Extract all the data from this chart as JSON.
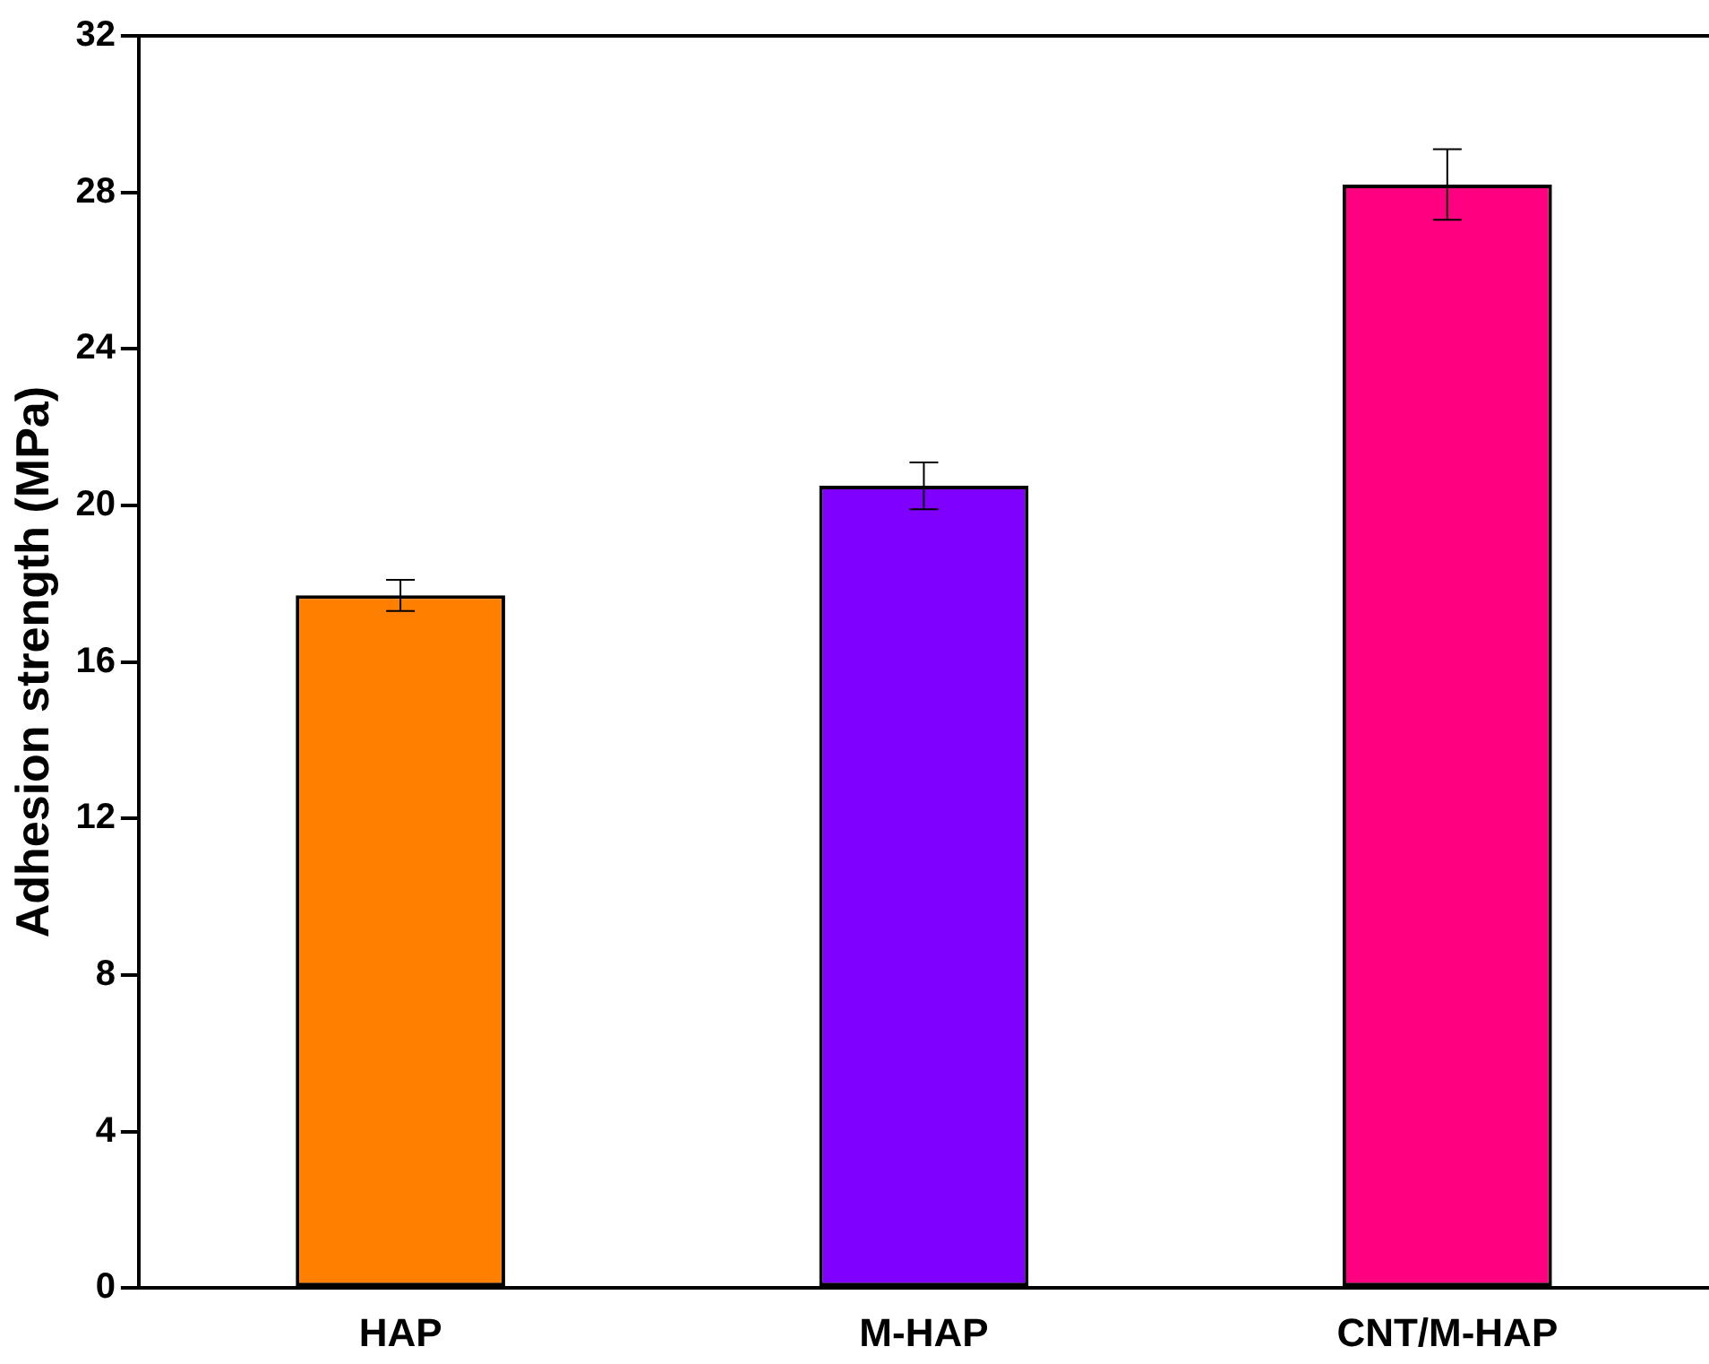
{
  "chart_data": {
    "type": "bar",
    "ylabel": "Adhesion strength (MPa)",
    "categories": [
      "HAP",
      "M-HAP",
      "CNT/M-HAP"
    ],
    "values": [
      17.7,
      20.5,
      28.2
    ],
    "errors": [
      0.4,
      0.6,
      0.9
    ],
    "colors": [
      "#ff8000",
      "#8000ff",
      "#ff0080"
    ],
    "ylim": [
      0,
      32
    ],
    "yticks": [
      0,
      4,
      8,
      12,
      16,
      20,
      24,
      28,
      32
    ],
    "grid": false,
    "legend": false
  }
}
